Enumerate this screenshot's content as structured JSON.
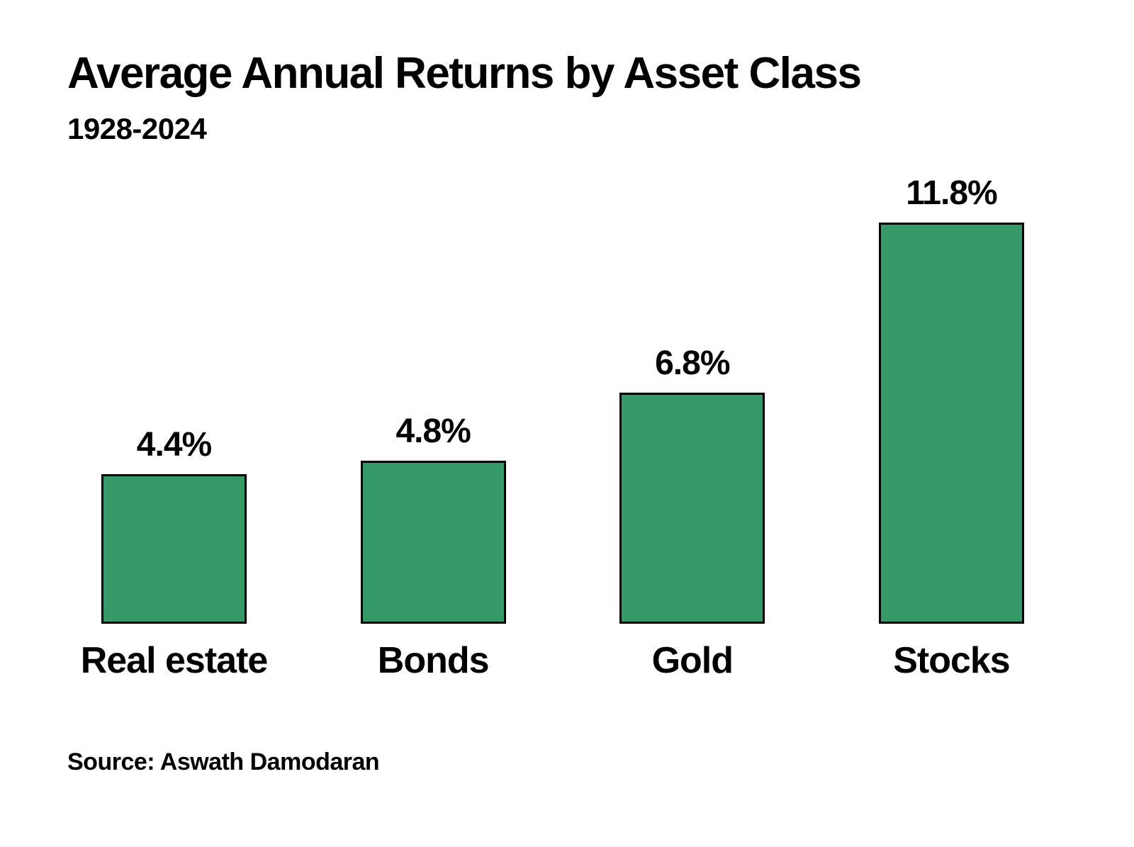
{
  "title": "Average Annual Returns by Asset Class",
  "subtitle": "1928-2024",
  "source_note": "Source: Aswath Damodaran",
  "chart_data": {
    "type": "bar",
    "title": "Average Annual Returns by Asset Class",
    "subtitle": "1928-2024",
    "categories": [
      "Real estate",
      "Bonds",
      "Gold",
      "Stocks"
    ],
    "values": [
      4.4,
      4.8,
      6.8,
      11.8
    ],
    "value_labels": [
      "4.4%",
      "4.8%",
      "6.8%",
      "11.8%"
    ],
    "unit": "percent",
    "xlabel": "",
    "ylabel": "",
    "ylim": [
      0,
      12.5
    ],
    "grid": false,
    "legend": false,
    "axes_hidden": true,
    "bar_color": "#359A68",
    "bar_border_color": "#000000",
    "text_color": "#000000",
    "background_color": "#ffffff",
    "source": "Source: Aswath Damodaran"
  }
}
